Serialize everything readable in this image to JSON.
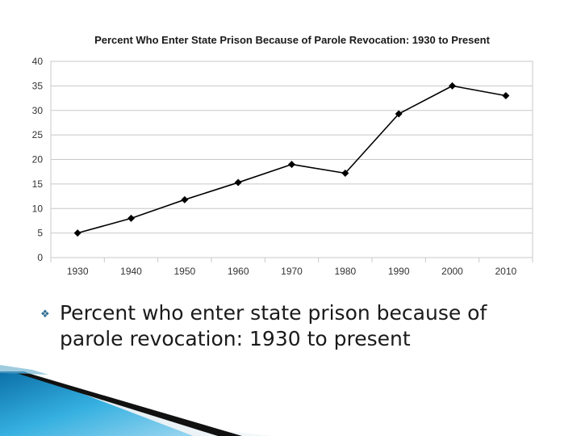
{
  "slide": {
    "bullet_text": "Percent who enter state prison because of parole revocation: 1930 to present"
  },
  "colors": {
    "line": "#000000",
    "grid": "#c8c8c8",
    "accent_blue": "#1a8fc9",
    "accent_dark": "#111111"
  },
  "icons": {
    "bullet": "diamond-bullet-icon"
  },
  "chart_data": {
    "type": "line",
    "title": "Percent Who Enter State Prison Because of Parole Revocation: 1930 to Present",
    "xlabel": "",
    "ylabel": "",
    "categories": [
      "1930",
      "1940",
      "1950",
      "1960",
      "1970",
      "1980",
      "1990",
      "2000",
      "2010"
    ],
    "series": [
      {
        "values": [
          5,
          8,
          11.8,
          15.3,
          19,
          17.2,
          29.3,
          35,
          33
        ]
      }
    ],
    "ylim": [
      0,
      40
    ],
    "yticks": [
      0,
      5,
      10,
      15,
      20,
      25,
      30,
      35,
      40
    ],
    "grid": true,
    "marker": "diamond",
    "legend": "none"
  }
}
